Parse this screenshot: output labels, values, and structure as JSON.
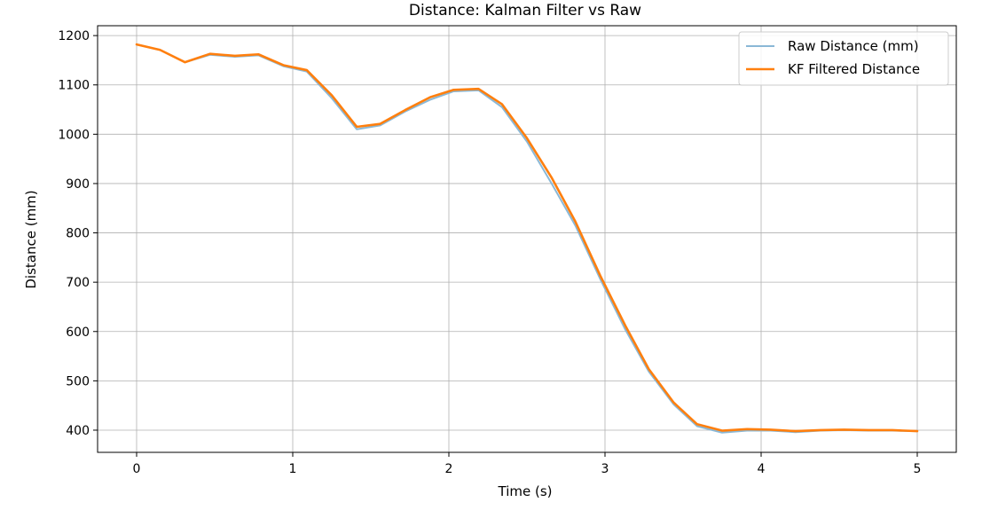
{
  "chart_data": {
    "type": "line",
    "title": "Distance: Kalman Filter vs Raw",
    "xlabel": "Time (s)",
    "ylabel": "Distance (mm)",
    "xlim": [
      -0.25,
      5.25
    ],
    "ylim": [
      355,
      1220
    ],
    "xticks": [
      0,
      1,
      2,
      3,
      4,
      5
    ],
    "yticks": [
      400,
      500,
      600,
      700,
      800,
      900,
      1000,
      1100,
      1200
    ],
    "grid": true,
    "legend_position": "top-right",
    "x": [
      0,
      0.15,
      0.31,
      0.47,
      0.63,
      0.78,
      0.94,
      1.09,
      1.25,
      1.41,
      1.56,
      1.72,
      1.88,
      2.03,
      2.19,
      2.34,
      2.5,
      2.66,
      2.81,
      2.97,
      3.13,
      3.28,
      3.44,
      3.59,
      3.75,
      3.91,
      4.06,
      4.22,
      4.38,
      4.53,
      4.69,
      4.84,
      5.0
    ],
    "series": [
      {
        "name": "Raw Distance (mm)",
        "color": "#8ab8d6",
        "values": [
          1182,
          1171,
          1146,
          1161,
          1157,
          1160,
          1138,
          1127,
          1073,
          1010,
          1018,
          1046,
          1070,
          1087,
          1089,
          1055,
          985,
          899,
          815,
          706,
          604,
          519,
          452,
          408,
          395,
          399,
          399,
          396,
          399,
          400,
          399,
          399,
          398
        ]
      },
      {
        "name": "KF Filtered Distance",
        "color": "#ff7f0e",
        "values": [
          1182,
          1171,
          1146,
          1163,
          1159,
          1162,
          1140,
          1130,
          1079,
          1015,
          1021,
          1049,
          1075,
          1090,
          1092,
          1061,
          992,
          911,
          823,
          713,
          612,
          524,
          456,
          412,
          399,
          402,
          401,
          398,
          400,
          401,
          400,
          400,
          398
        ]
      }
    ]
  }
}
